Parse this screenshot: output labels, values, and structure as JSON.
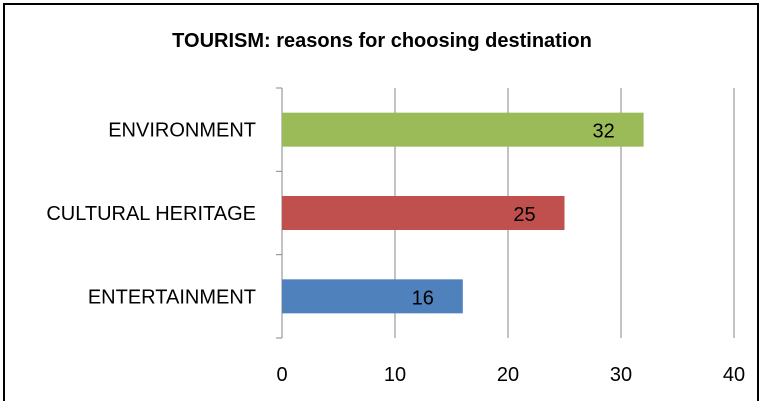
{
  "chart_data": {
    "type": "bar",
    "orientation": "horizontal",
    "title": "TOURISM:  reasons for choosing destination",
    "categories": [
      "ENVIRONMENT",
      "CULTURAL HERITAGE",
      "ENTERTAINMENT"
    ],
    "values": [
      32,
      25,
      16
    ],
    "colors": [
      "#9BBB59",
      "#C0504D",
      "#4F81BD"
    ],
    "data_labels": [
      "32",
      "25",
      "16"
    ],
    "xlim": [
      0,
      40
    ],
    "xticks": [
      "0",
      "10",
      "20",
      "30",
      "40"
    ],
    "grid": true,
    "legend": "none"
  }
}
